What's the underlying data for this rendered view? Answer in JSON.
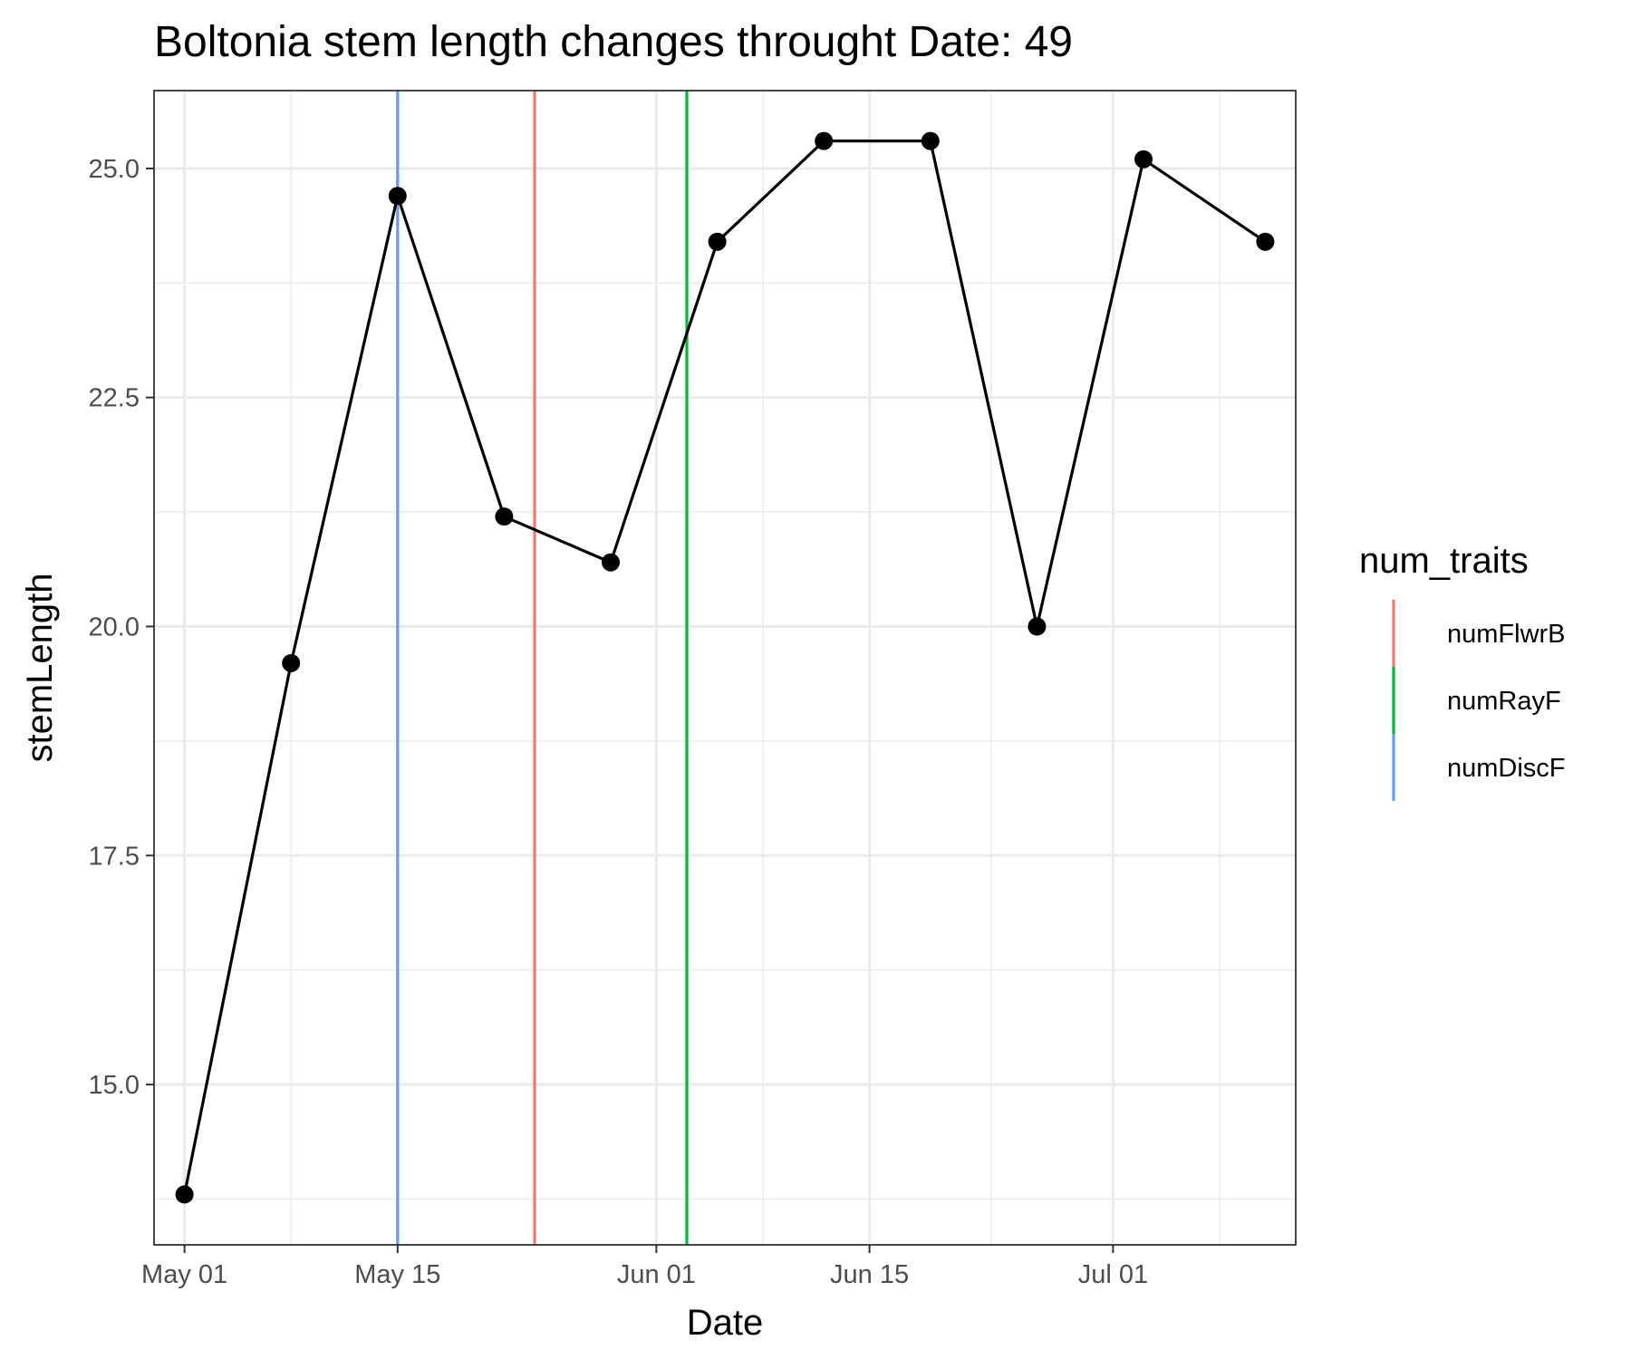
{
  "chart_data": {
    "type": "line",
    "title": "Boltonia stem length changes throught Date:  49",
    "xlabel": "Date",
    "ylabel": "stemLength",
    "x_type": "date",
    "xlim": [
      "2021-04-29",
      "2021-07-13"
    ],
    "ylim": [
      13.25,
      25.85
    ],
    "x_ticks": [
      {
        "date": "2021-05-01",
        "label": "May 01"
      },
      {
        "date": "2021-05-15",
        "label": "May 15"
      },
      {
        "date": "2021-06-01",
        "label": "Jun 01"
      },
      {
        "date": "2021-06-15",
        "label": "Jun 15"
      },
      {
        "date": "2021-07-01",
        "label": "Jul 01"
      }
    ],
    "x_minor_ticks": [
      "2021-05-08",
      "2021-05-24",
      "2021-06-08",
      "2021-06-23",
      "2021-07-08"
    ],
    "y_ticks": [
      {
        "value": 15.0,
        "label": "15.0"
      },
      {
        "value": 17.5,
        "label": "17.5"
      },
      {
        "value": 20.0,
        "label": "20.0"
      },
      {
        "value": 22.5,
        "label": "22.5"
      },
      {
        "value": 25.0,
        "label": "25.0"
      }
    ],
    "y_minor_ticks": [
      13.75,
      16.25,
      18.75,
      21.25,
      23.75
    ],
    "grid": true,
    "series": [
      {
        "color": "#000000",
        "x": [
          "2021-05-01",
          "2021-05-08",
          "2021-05-15",
          "2021-05-22",
          "2021-05-29",
          "2021-06-05",
          "2021-06-12",
          "2021-06-19",
          "2021-06-26",
          "2021-07-03",
          "2021-07-11"
        ],
        "y": [
          13.8,
          19.6,
          24.7,
          21.2,
          20.7,
          24.2,
          25.3,
          25.3,
          20.0,
          25.1,
          24.2
        ]
      }
    ],
    "vlines": [
      {
        "trait": "numFlwrB",
        "date": "2021-05-24",
        "color": "#F8766D"
      },
      {
        "trait": "numRayF",
        "date": "2021-06-03",
        "color": "#00BA38"
      },
      {
        "trait": "numDiscF",
        "date": "2021-05-15",
        "color": "#619CFF"
      }
    ],
    "legend": {
      "title": "num_traits",
      "position": "right",
      "items": [
        {
          "label": "numFlwrB",
          "color": "#F8766D"
        },
        {
          "label": "numRayF",
          "color": "#00BA38"
        },
        {
          "label": "numDiscF",
          "color": "#619CFF"
        }
      ]
    }
  }
}
